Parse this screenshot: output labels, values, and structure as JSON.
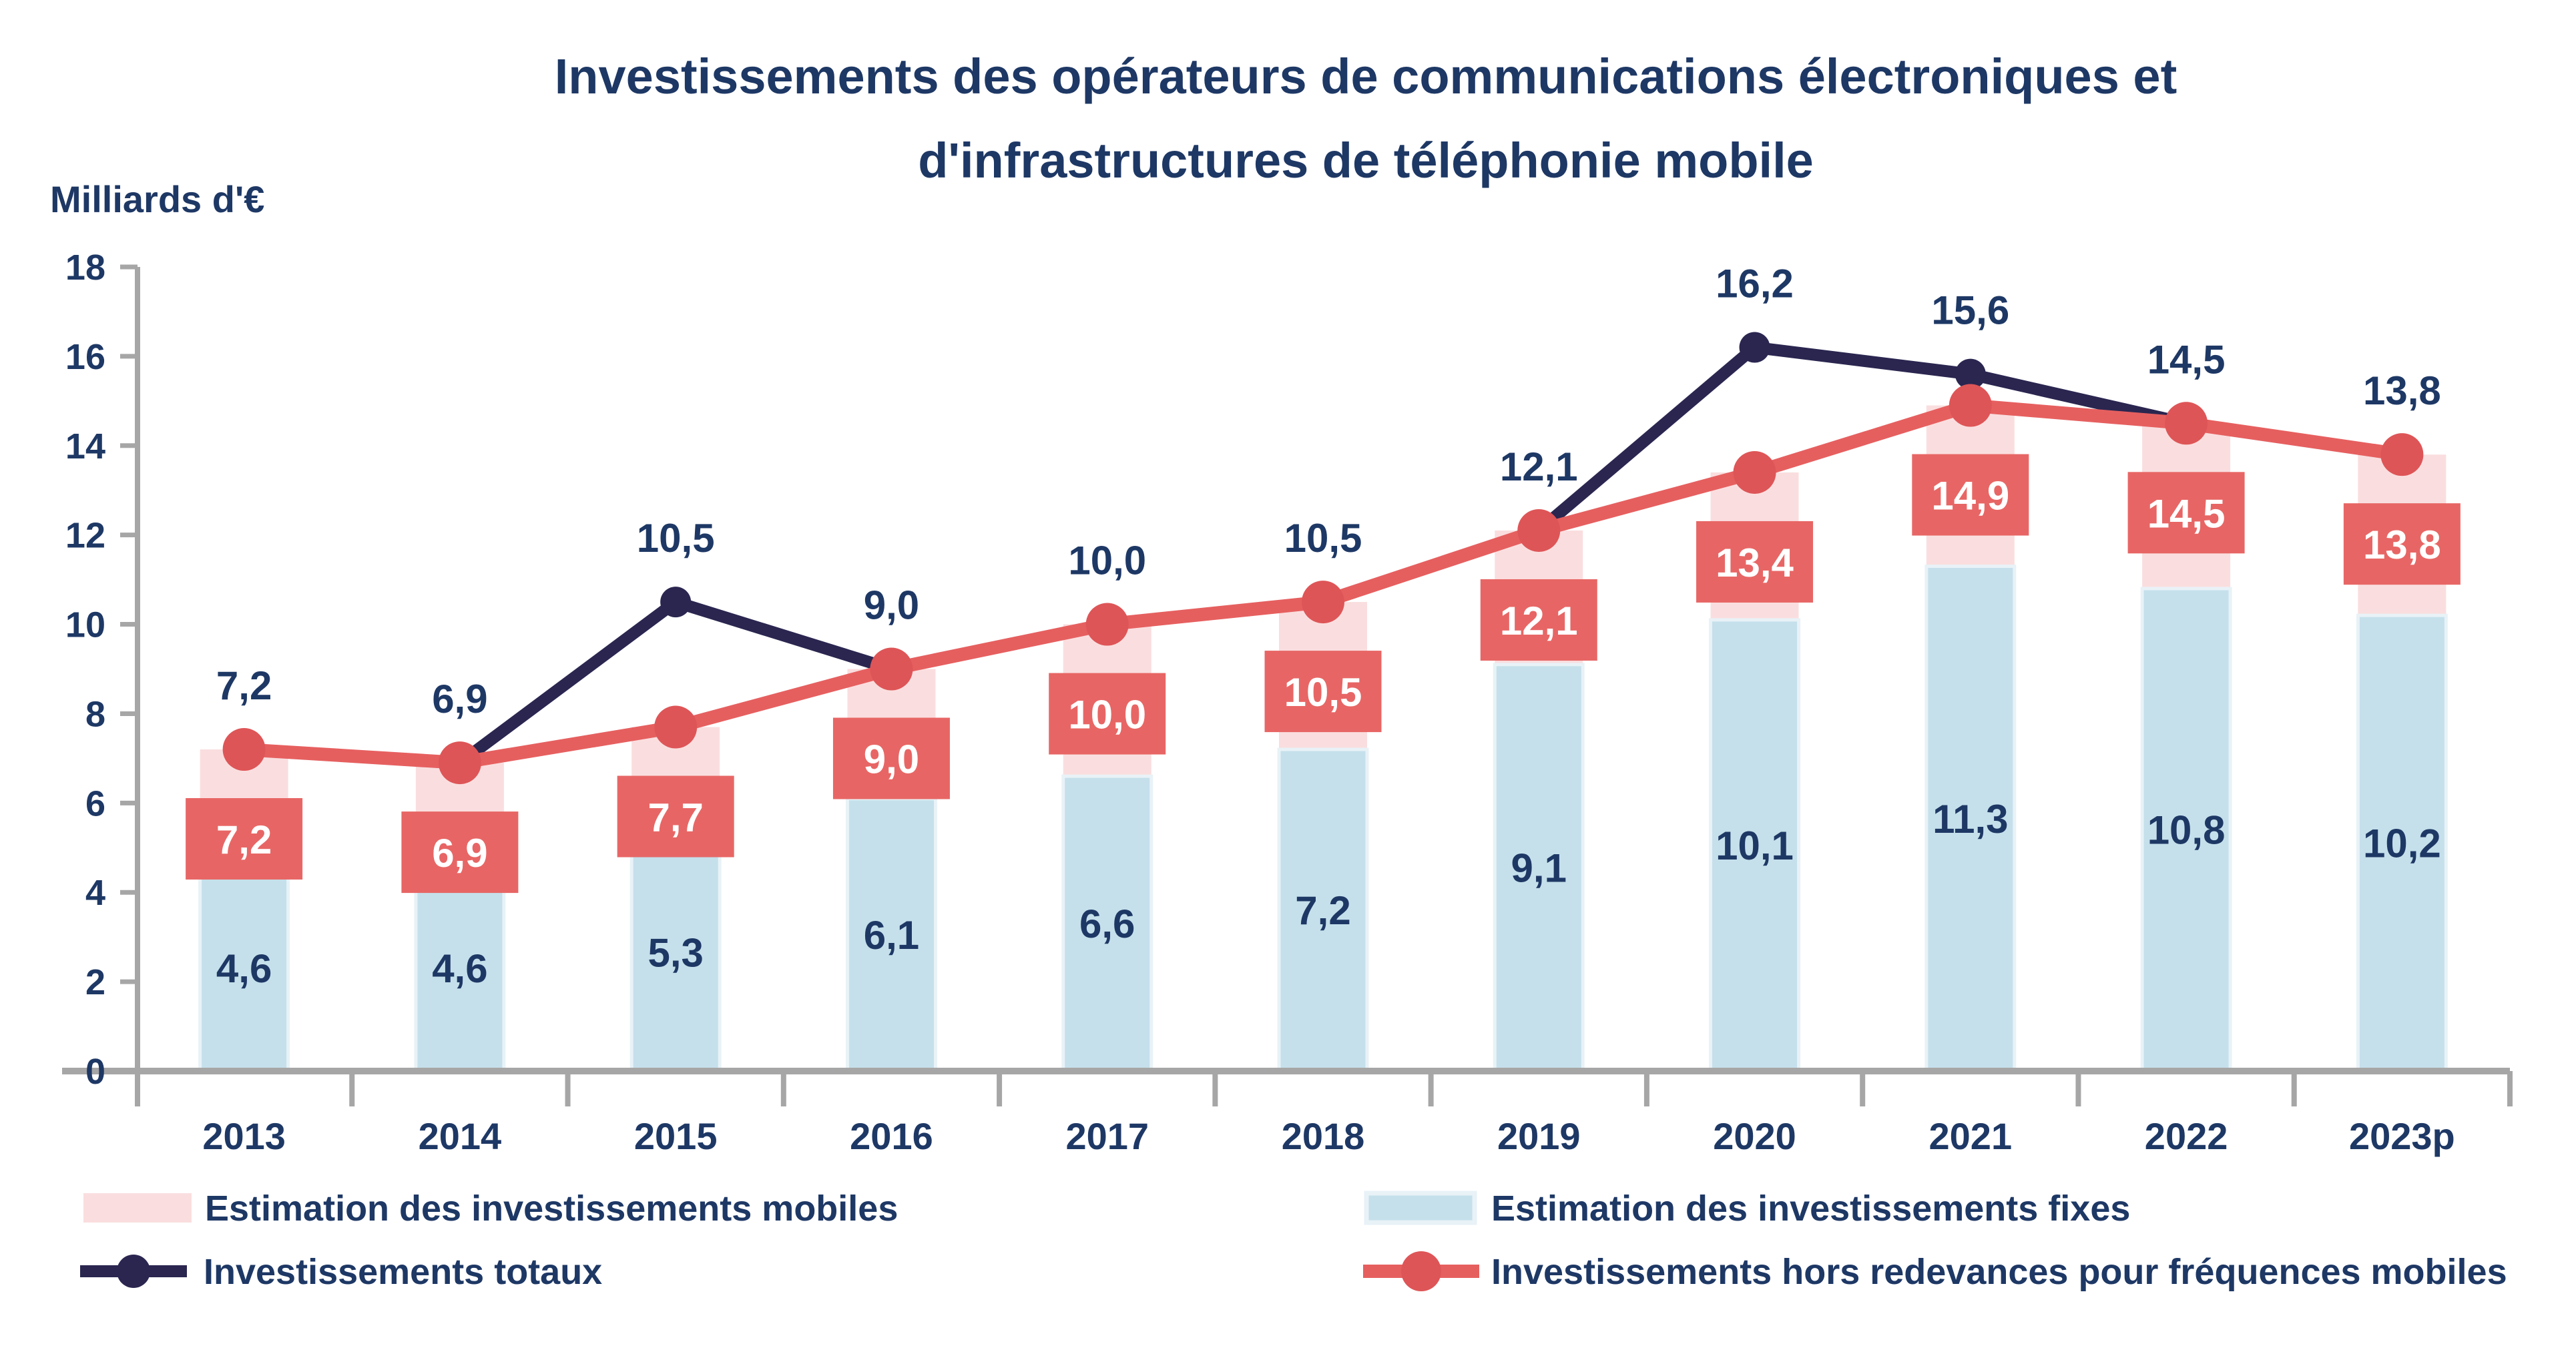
{
  "title": {
    "line1": "Investissements des opérateurs de communications électroniques et",
    "line2": "d'infrastructures de téléphonie mobile"
  },
  "y_axis": {
    "unit_label": "Milliards d'€",
    "ticks": [
      0,
      2,
      4,
      6,
      8,
      10,
      12,
      14,
      16,
      18
    ],
    "min": 0,
    "max": 18
  },
  "chart_data": {
    "type": "bar",
    "subtype": "stacked-bars-with-lines",
    "categories": [
      "2013",
      "2014",
      "2015",
      "2016",
      "2017",
      "2018",
      "2019",
      "2020",
      "2021",
      "2022",
      "2023p"
    ],
    "series": [
      {
        "name": "Estimation des investissements fixes",
        "render": "bar",
        "values": [
          4.6,
          4.6,
          5.3,
          6.1,
          6.6,
          7.2,
          9.1,
          10.1,
          11.3,
          10.8,
          10.2
        ],
        "labels": [
          "4,6",
          "4,6",
          "5,3",
          "6,1",
          "6,6",
          "7,2",
          "9,1",
          "10,1",
          "11,3",
          "10,8",
          "10,2"
        ]
      },
      {
        "name": "Estimation des investissements mobiles",
        "render": "bar-top-segment",
        "note": "pink segment tops out at the 'hors redevances' total"
      },
      {
        "name": "Investissements hors redevances pour fréquences mobiles",
        "render": "line",
        "values": [
          7.2,
          6.9,
          7.7,
          9.0,
          10.0,
          10.5,
          12.1,
          13.4,
          14.9,
          14.5,
          13.8
        ],
        "labels": [
          "7,2",
          "6,9",
          "7,7",
          "9,0",
          "10,0",
          "10,5",
          "12,1",
          "13,4",
          "14,9",
          "14,5",
          "13,8"
        ]
      },
      {
        "name": "Investissements totaux",
        "render": "line",
        "values": [
          7.2,
          6.9,
          10.5,
          9.0,
          10.0,
          10.5,
          12.1,
          16.2,
          15.6,
          14.5,
          13.8
        ],
        "labels": [
          "7,2",
          "6,9",
          "10,5",
          "9,0",
          "10,0",
          "10,5",
          "12,1",
          "16,2",
          "15,6",
          "14,5",
          "13,8"
        ]
      }
    ],
    "ylim": [
      0,
      18
    ],
    "grid": false,
    "legend_position": "bottom"
  },
  "legend": {
    "mobiles": "Estimation des investissements mobiles",
    "fixes": "Estimation des investissements fixes",
    "totaux": "Investissements totaux",
    "hors": "Investissements hors redevances pour fréquences mobiles"
  },
  "colors": {
    "navy_text": "#1E3865",
    "navy_line": "#2A2650",
    "red_line": "#E65F5F",
    "red_dot": "#DE5557",
    "red_box": "#E76665",
    "red_box_text": "#FFFFFF",
    "pink_bar": "#FADEDF",
    "blue_bar": "#C5E0EB",
    "blue_bar_border": "#E8F2F7",
    "axis_gray": "#A6A6A6"
  }
}
